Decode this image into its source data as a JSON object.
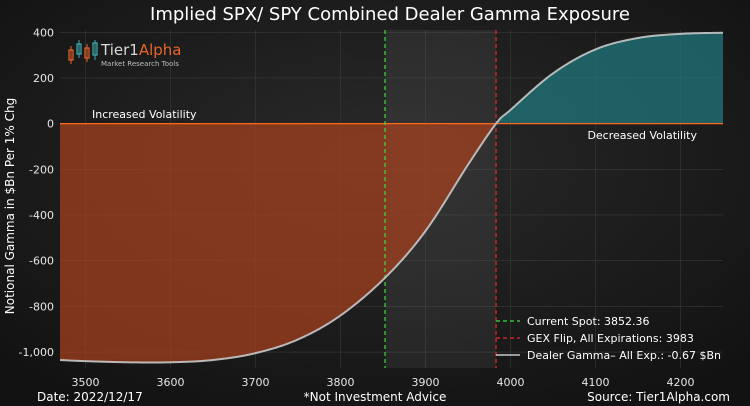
{
  "chart_data": {
    "type": "area",
    "title": "Implied SPX/ SPY Combined Dealer Gamma Exposure",
    "xlabel": "",
    "ylabel": "Notional Gamma in $Bn Per 1% Chg",
    "xlim": [
      3470,
      4250
    ],
    "ylim": [
      -1070,
      410
    ],
    "x_ticks": [
      3500,
      3600,
      3700,
      3800,
      3900,
      4000,
      4100,
      4200
    ],
    "y_ticks": [
      -1000,
      -800,
      -600,
      -400,
      -200,
      0,
      200,
      400
    ],
    "x_tick_labels": [
      "3500",
      "3600",
      "3700",
      "3800",
      "3900",
      "4000",
      "4100",
      "4200"
    ],
    "y_tick_labels": [
      "-1,000",
      "-800",
      "-600",
      "-400",
      "-200",
      "0",
      "200",
      "400"
    ],
    "grid": true,
    "legend_position": "bottom-right",
    "series": [
      {
        "name": "Dealer Gamma– All Exp.: -0.67 $Bn",
        "x": [
          3470,
          3500,
          3550,
          3600,
          3650,
          3700,
          3750,
          3800,
          3852.36,
          3900,
          3950,
          3983,
          4000,
          4050,
          4100,
          4150,
          4200,
          4250
        ],
        "y": [
          -1035,
          -1040,
          -1045,
          -1045,
          -1035,
          -1005,
          -945,
          -840,
          -675,
          -470,
          -180,
          0,
          60,
          220,
          325,
          375,
          393,
          398
        ],
        "color": "#c8c8c8"
      }
    ],
    "markers": [
      {
        "name": "Current Spot: 3852.36",
        "x": 3852.36,
        "color": "#3ddc3d"
      },
      {
        "name": "GEX Flip, All Expirations: 3983",
        "x": 3983,
        "color": "#e52a2a"
      }
    ],
    "zero_line_color": "#ff6a1a",
    "negative_fill": "#a8411e",
    "positive_fill": "#1f7a7e",
    "annotations": {
      "left": "Increased Volatility",
      "right": "Decreased Volatility"
    }
  },
  "logo": {
    "brand_left": "Tier1",
    "brand_right": "Alpha",
    "tagline": "Market Research Tools"
  },
  "footer": {
    "date": "Date: 2022/12/17",
    "disclaimer": "*Not Investment Advice",
    "source": "Source: Tier1Alpha.com"
  }
}
